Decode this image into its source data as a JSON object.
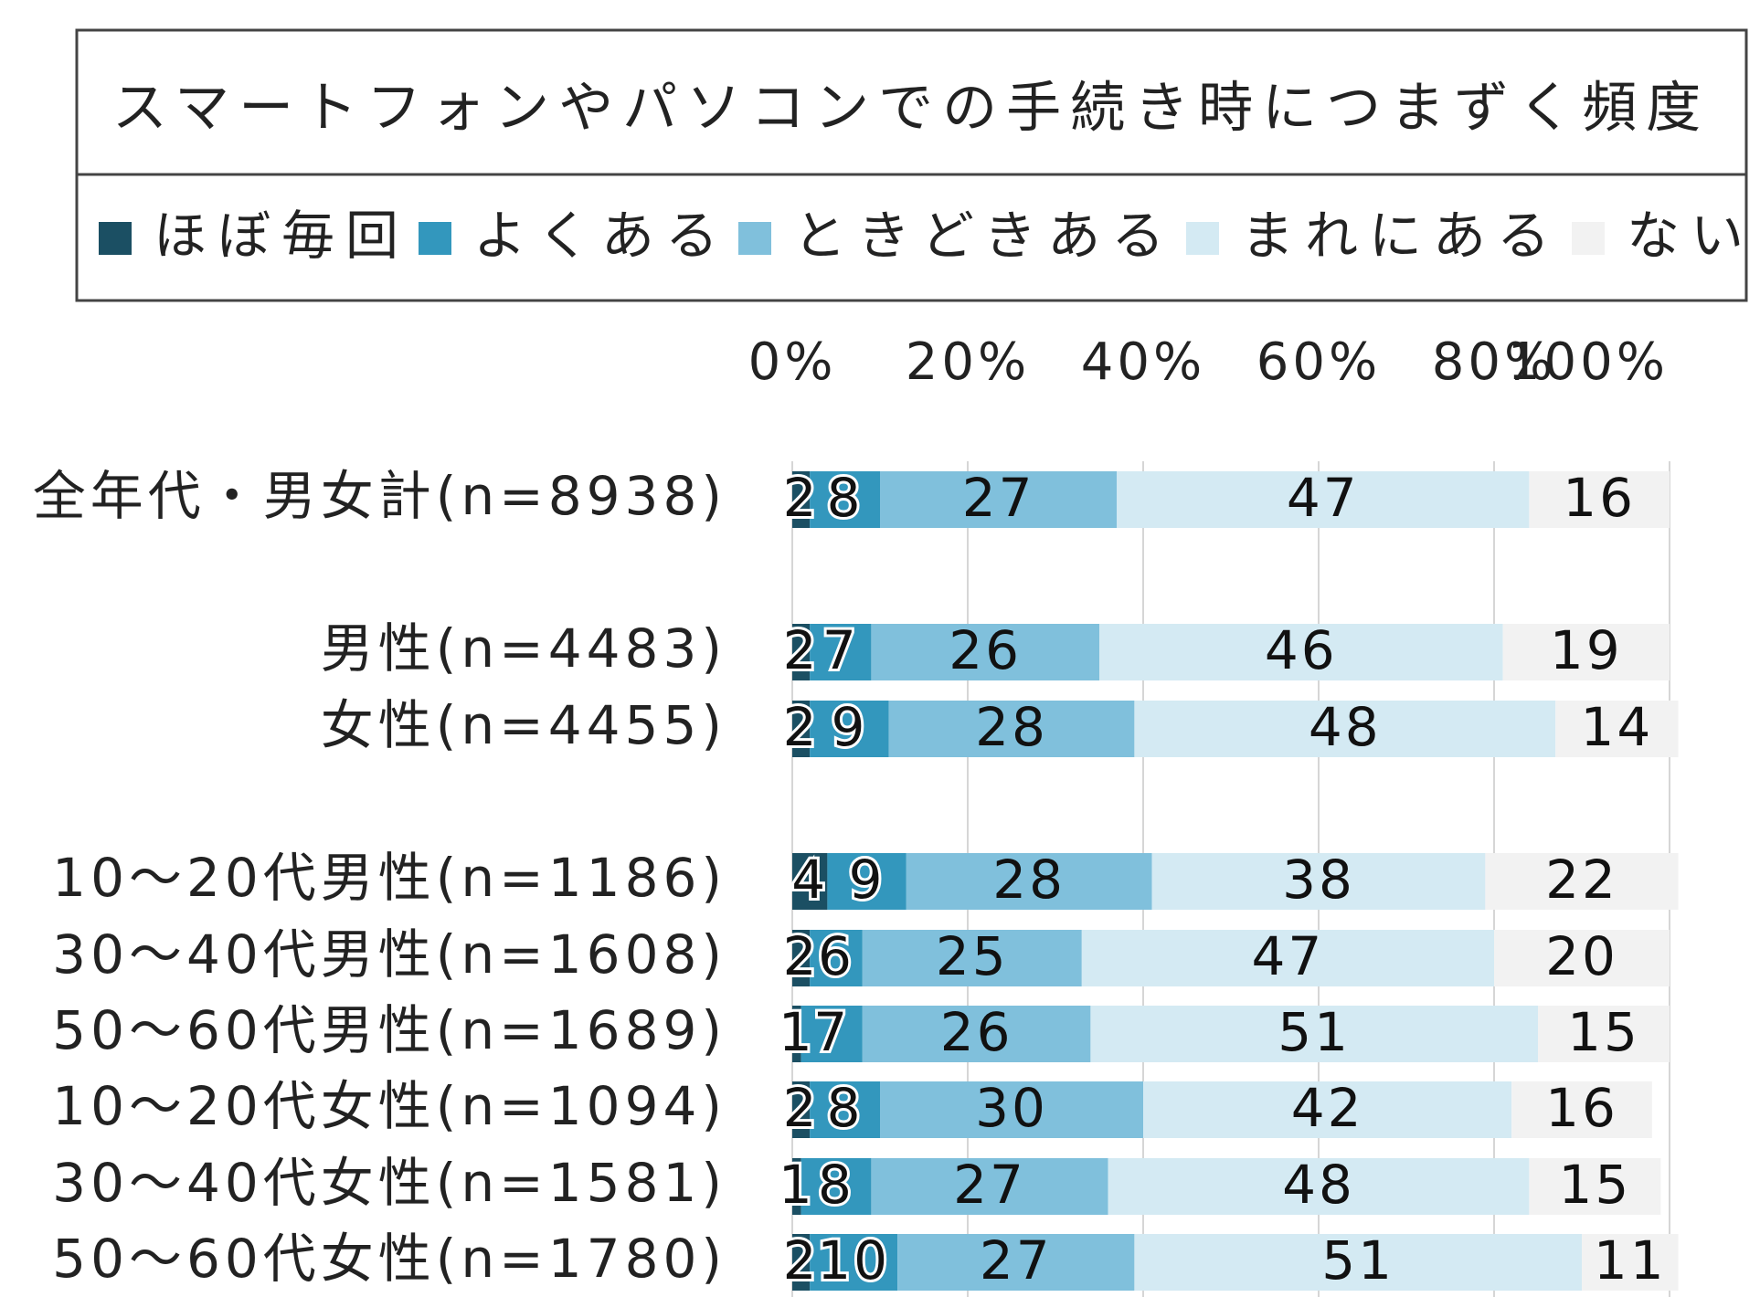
{
  "chart_data": {
    "type": "bar",
    "orientation": "horizontal",
    "stacked": "percent",
    "title": "スマートフォンやパソコンでの手続き時につまずく頻度",
    "legend": [
      "ほぼ毎回",
      "よくある",
      "ときどきある",
      "まれにある",
      "ない"
    ],
    "legend_position": "top",
    "x_ticks": [
      "0%",
      "20%",
      "40%",
      "60%",
      "80%",
      "100%"
    ],
    "xlim": [
      0,
      100
    ],
    "grid": true,
    "colors": [
      "#1b4f63",
      "#3397bd",
      "#80c0dc",
      "#d4eaf3",
      "#f2f2f2"
    ],
    "categories": [
      "全年代・男女計(n=8938)",
      "男性(n=4483)",
      "女性(n=4455)",
      "10～20代男性(n=1186)",
      "30～40代男性(n=1608)",
      "50～60代男性(n=1689)",
      "10～20代女性(n=1094)",
      "30～40代女性(n=1581)",
      "50～60代女性(n=1780)"
    ],
    "series": [
      {
        "name": "ほぼ毎回",
        "values": [
          2,
          2,
          2,
          4,
          2,
          1,
          2,
          1,
          2
        ]
      },
      {
        "name": "よくある",
        "values": [
          8,
          7,
          9,
          9,
          6,
          7,
          8,
          8,
          10
        ]
      },
      {
        "name": "ときどきある",
        "values": [
          27,
          26,
          28,
          28,
          25,
          26,
          30,
          27,
          27
        ]
      },
      {
        "name": "まれにある",
        "values": [
          47,
          46,
          48,
          38,
          47,
          51,
          42,
          48,
          51
        ]
      },
      {
        "name": "ない",
        "values": [
          16,
          19,
          14,
          22,
          20,
          15,
          16,
          15,
          11
        ]
      }
    ]
  }
}
